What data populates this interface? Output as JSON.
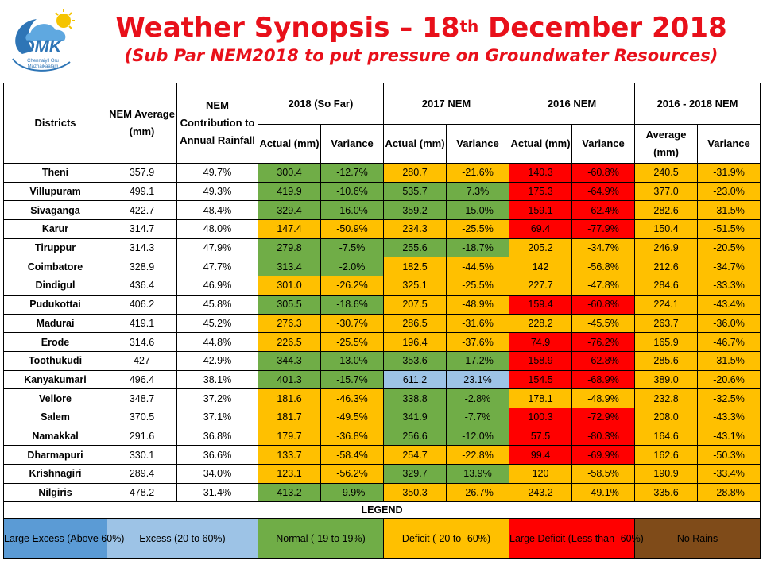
{
  "logo": {
    "text": "OMK",
    "tagline": "Chennaiyil Oru Mazhaikaalam"
  },
  "header": {
    "title_pre": "Weather Synopsis – 18",
    "title_sup": "th",
    "title_post": " December 2018",
    "subtitle": "(Sub Par NEM2018 to put pressure on Groundwater Resources)"
  },
  "columns": {
    "districts": "Districts",
    "nem_average": "NEM Average (mm)",
    "nem_contribution": "NEM Contribution to Annual Rainfall",
    "group_2018": "2018 (So Far)",
    "group_2017": "2017 NEM",
    "group_2016": "2016 NEM",
    "group_avg": "2016 - 2018 NEM",
    "actual_2018": "Actual (mm)",
    "variance_2018": "Variance",
    "actual_2017": "Actual (mm)",
    "variance_2017": "Variance",
    "actual_2016": "Actual (mm)",
    "variance_2016": "Variance",
    "avg_3yr": "Average (mm)",
    "variance_3yr": "Variance"
  },
  "colors": {
    "normal": "#70ad47",
    "deficit": "#ffc000",
    "large_deficit": "#ff0000",
    "excess": "#9dc3e6",
    "large_excess": "#5b9bd5",
    "no_rains": "#7f4b19",
    "title": "#e8101a"
  },
  "rows": [
    {
      "district": "Theni",
      "avg": "357.9",
      "contrib": "49.7%",
      "a18": "300.4",
      "v18": "-12.7%",
      "c18": "g",
      "a17": "280.7",
      "v17": "-21.6%",
      "c17": "y",
      "a16": "140.3",
      "v16": "-60.8%",
      "c16": "r",
      "a3": "240.5",
      "v3": "-31.9%",
      "c3": "y"
    },
    {
      "district": "Villupuram",
      "avg": "499.1",
      "contrib": "49.3%",
      "a18": "419.9",
      "v18": "-10.6%",
      "c18": "g",
      "a17": "535.7",
      "v17": "7.3%",
      "c17": "g",
      "a16": "175.3",
      "v16": "-64.9%",
      "c16": "r",
      "a3": "377.0",
      "v3": "-23.0%",
      "c3": "y"
    },
    {
      "district": "Sivaganga",
      "avg": "422.7",
      "contrib": "48.4%",
      "a18": "329.4",
      "v18": "-16.0%",
      "c18": "g",
      "a17": "359.2",
      "v17": "-15.0%",
      "c17": "g",
      "a16": "159.1",
      "v16": "-62.4%",
      "c16": "r",
      "a3": "282.6",
      "v3": "-31.5%",
      "c3": "y"
    },
    {
      "district": "Karur",
      "avg": "314.7",
      "contrib": "48.0%",
      "a18": "147.4",
      "v18": "-50.9%",
      "c18": "y",
      "a17": "234.3",
      "v17": "-25.5%",
      "c17": "y",
      "a16": "69.4",
      "v16": "-77.9%",
      "c16": "r",
      "a3": "150.4",
      "v3": "-51.5%",
      "c3": "y"
    },
    {
      "district": "Tiruppur",
      "avg": "314.3",
      "contrib": "47.9%",
      "a18": "279.8",
      "v18": "-7.5%",
      "c18": "g",
      "a17": "255.6",
      "v17": "-18.7%",
      "c17": "g",
      "a16": "205.2",
      "v16": "-34.7%",
      "c16": "y",
      "a3": "246.9",
      "v3": "-20.5%",
      "c3": "y"
    },
    {
      "district": "Coimbatore",
      "avg": "328.9",
      "contrib": "47.7%",
      "a18": "313.4",
      "v18": "-2.0%",
      "c18": "g",
      "a17": "182.5",
      "v17": "-44.5%",
      "c17": "y",
      "a16": "142",
      "v16": "-56.8%",
      "c16": "y",
      "a3": "212.6",
      "v3": "-34.7%",
      "c3": "y"
    },
    {
      "district": "Dindigul",
      "avg": "436.4",
      "contrib": "46.9%",
      "a18": "301.0",
      "v18": "-26.2%",
      "c18": "y",
      "a17": "325.1",
      "v17": "-25.5%",
      "c17": "y",
      "a16": "227.7",
      "v16": "-47.8%",
      "c16": "y",
      "a3": "284.6",
      "v3": "-33.3%",
      "c3": "y"
    },
    {
      "district": "Pudukottai",
      "avg": "406.2",
      "contrib": "45.8%",
      "a18": "305.5",
      "v18": "-18.6%",
      "c18": "g",
      "a17": "207.5",
      "v17": "-48.9%",
      "c17": "y",
      "a16": "159.4",
      "v16": "-60.8%",
      "c16": "r",
      "a3": "224.1",
      "v3": "-43.4%",
      "c3": "y"
    },
    {
      "district": "Madurai",
      "avg": "419.1",
      "contrib": "45.2%",
      "a18": "276.3",
      "v18": "-30.7%",
      "c18": "y",
      "a17": "286.5",
      "v17": "-31.6%",
      "c17": "y",
      "a16": "228.2",
      "v16": "-45.5%",
      "c16": "y",
      "a3": "263.7",
      "v3": "-36.0%",
      "c3": "y"
    },
    {
      "district": "Erode",
      "avg": "314.6",
      "contrib": "44.8%",
      "a18": "226.5",
      "v18": "-25.5%",
      "c18": "y",
      "a17": "196.4",
      "v17": "-37.6%",
      "c17": "y",
      "a16": "74.9",
      "v16": "-76.2%",
      "c16": "r",
      "a3": "165.9",
      "v3": "-46.7%",
      "c3": "y"
    },
    {
      "district": "Toothukudi",
      "avg": "427",
      "contrib": "42.9%",
      "a18": "344.3",
      "v18": "-13.0%",
      "c18": "g",
      "a17": "353.6",
      "v17": "-17.2%",
      "c17": "g",
      "a16": "158.9",
      "v16": "-62.8%",
      "c16": "r",
      "a3": "285.6",
      "v3": "-31.5%",
      "c3": "y"
    },
    {
      "district": "Kanyakumari",
      "avg": "496.4",
      "contrib": "38.1%",
      "a18": "401.3",
      "v18": "-15.7%",
      "c18": "g",
      "a17": "611.2",
      "v17": "23.1%",
      "c17": "b",
      "a16": "154.5",
      "v16": "-68.9%",
      "c16": "r",
      "a3": "389.0",
      "v3": "-20.6%",
      "c3": "y"
    },
    {
      "district": "Vellore",
      "avg": "348.7",
      "contrib": "37.2%",
      "a18": "181.6",
      "v18": "-46.3%",
      "c18": "y",
      "a17": "338.8",
      "v17": "-2.8%",
      "c17": "g",
      "a16": "178.1",
      "v16": "-48.9%",
      "c16": "y",
      "a3": "232.8",
      "v3": "-32.5%",
      "c3": "y"
    },
    {
      "district": "Salem",
      "avg": "370.5",
      "contrib": "37.1%",
      "a18": "181.7",
      "v18": "-49.5%",
      "c18": "y",
      "a17": "341.9",
      "v17": "-7.7%",
      "c17": "g",
      "a16": "100.3",
      "v16": "-72.9%",
      "c16": "r",
      "a3": "208.0",
      "v3": "-43.3%",
      "c3": "y"
    },
    {
      "district": "Namakkal",
      "avg": "291.6",
      "contrib": "36.8%",
      "a18": "179.7",
      "v18": "-36.8%",
      "c18": "y",
      "a17": "256.6",
      "v17": "-12.0%",
      "c17": "g",
      "a16": "57.5",
      "v16": "-80.3%",
      "c16": "r",
      "a3": "164.6",
      "v3": "-43.1%",
      "c3": "y"
    },
    {
      "district": "Dharmapuri",
      "avg": "330.1",
      "contrib": "36.6%",
      "a18": "133.7",
      "v18": "-58.4%",
      "c18": "y",
      "a17": "254.7",
      "v17": "-22.8%",
      "c17": "y",
      "a16": "99.4",
      "v16": "-69.9%",
      "c16": "r",
      "a3": "162.6",
      "v3": "-50.3%",
      "c3": "y"
    },
    {
      "district": "Krishnagiri",
      "avg": "289.4",
      "contrib": "34.0%",
      "a18": "123.1",
      "v18": "-56.2%",
      "c18": "y",
      "a17": "329.7",
      "v17": "13.9%",
      "c17": "g",
      "a16": "120",
      "v16": "-58.5%",
      "c16": "y",
      "a3": "190.9",
      "v3": "-33.4%",
      "c3": "y"
    },
    {
      "district": "Nilgiris",
      "avg": "478.2",
      "contrib": "31.4%",
      "a18": "413.2",
      "v18": "-9.9%",
      "c18": "g",
      "a17": "350.3",
      "v17": "-26.7%",
      "c17": "y",
      "a16": "243.2",
      "v16": "-49.1%",
      "c16": "y",
      "a3": "335.6",
      "v3": "-28.8%",
      "c3": "y"
    }
  ],
  "legend": {
    "title": "LEGEND",
    "large_excess": "Large Excess (Above 60%)",
    "excess": "Excess (20 to 60%)",
    "normal": "Normal (-19 to 19%)",
    "deficit": "Deficit (-20 to -60%)",
    "large_deficit": "Large Deficit (Less than -60%)",
    "no_rains": "No Rains"
  }
}
